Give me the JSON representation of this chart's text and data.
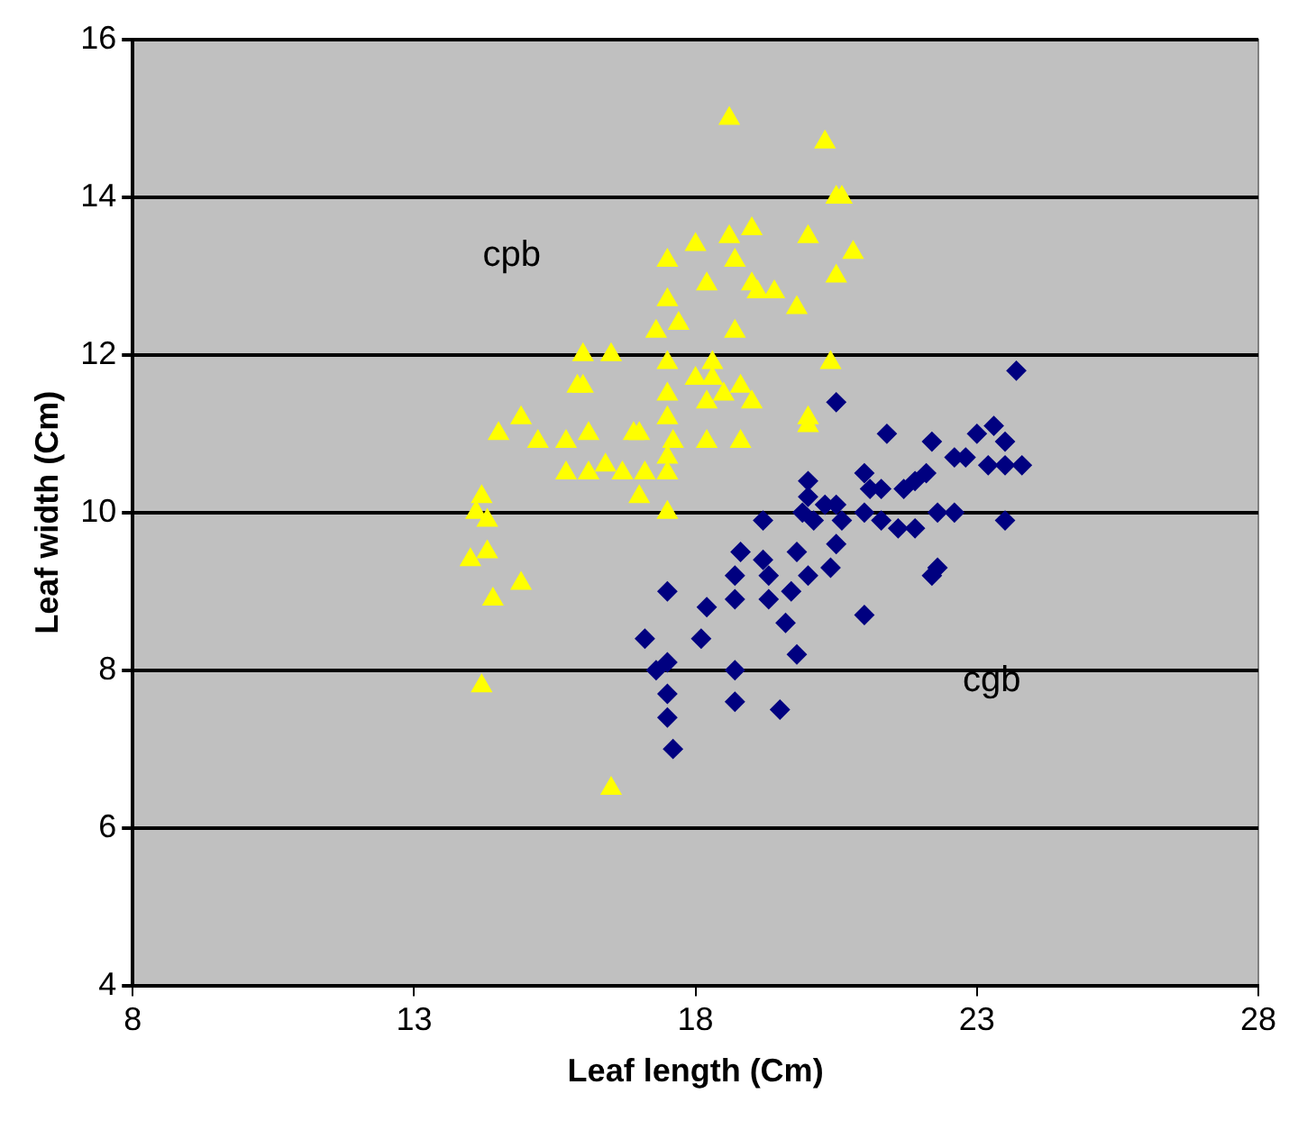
{
  "chart_data": {
    "type": "scatter",
    "xlabel": "Leaf length (Cm)",
    "ylabel": "Leaf width (Cm)",
    "xlim": [
      8,
      28
    ],
    "xticks": [
      8,
      13,
      18,
      23,
      28
    ],
    "ylim": [
      4,
      16
    ],
    "yticks": [
      4,
      6,
      8,
      10,
      12,
      14,
      16
    ],
    "grid": "y",
    "legend": false,
    "series": [
      {
        "name": "cpb",
        "color": "#ffff00",
        "marker": "triangle",
        "x": [
          18.6,
          20.3,
          20.6,
          20.5,
          18.0,
          18.6,
          19.0,
          20.0,
          20.8,
          17.5,
          18.2,
          18.7,
          19.0,
          19.1,
          19.4,
          19.8,
          20.5,
          17.5,
          17.7,
          17.3,
          18.7,
          19.0,
          20.4,
          16.0,
          16.5,
          17.5,
          18.3,
          18.0,
          18.3,
          18.8,
          18.5,
          17.5,
          15.9,
          16.0,
          14.9,
          17.5,
          18.2,
          20.0,
          20.0,
          15.2,
          14.5,
          15.7,
          16.9,
          17.0,
          17.6,
          18.2,
          18.8,
          16.1,
          17.5,
          17.5,
          15.7,
          16.1,
          16.4,
          16.7,
          17.1,
          17.0,
          17.5,
          14.2,
          14.1,
          14.3,
          14.0,
          14.3,
          14.9,
          14.4,
          14.2,
          16.5
        ],
        "values": [
          15.0,
          14.7,
          14.0,
          14.0,
          13.4,
          13.5,
          13.6,
          13.5,
          13.3,
          13.2,
          12.9,
          13.2,
          12.9,
          12.8,
          12.8,
          12.6,
          13.0,
          12.7,
          12.4,
          12.3,
          12.3,
          11.4,
          11.9,
          12.0,
          12.0,
          11.9,
          11.9,
          11.7,
          11.7,
          11.6,
          11.5,
          11.5,
          11.6,
          11.6,
          11.2,
          11.2,
          11.4,
          11.2,
          11.1,
          10.9,
          11.0,
          10.9,
          11.0,
          11.0,
          10.9,
          10.9,
          10.9,
          11.0,
          10.7,
          10.5,
          10.5,
          10.5,
          10.6,
          10.5,
          10.5,
          10.2,
          10.0,
          10.2,
          10.0,
          9.9,
          9.4,
          9.5,
          9.1,
          8.9,
          7.8,
          6.5
        ]
      },
      {
        "name": "cgb",
        "color": "#000080",
        "marker": "diamond",
        "x": [
          23.7,
          20.5,
          21.4,
          22.2,
          23.0,
          23.3,
          23.5,
          22.6,
          22.8,
          23.2,
          23.5,
          23.8,
          21.0,
          21.3,
          21.7,
          21.9,
          22.1,
          21.1,
          20.0,
          20.0,
          20.3,
          20.5,
          19.9,
          20.6,
          21.0,
          21.3,
          21.6,
          21.9,
          22.3,
          22.6,
          23.5,
          22.3,
          22.2,
          21.0,
          20.1,
          20.5,
          19.2,
          19.8,
          19.2,
          18.8,
          18.7,
          19.3,
          19.3,
          19.7,
          20.0,
          20.4,
          17.5,
          18.2,
          18.7,
          19.6,
          17.1,
          18.1,
          19.8,
          17.3,
          17.5,
          18.7,
          17.5,
          17.5,
          18.7,
          19.5,
          17.6
        ],
        "values": [
          11.8,
          11.4,
          11.0,
          10.9,
          11.0,
          11.1,
          10.9,
          10.7,
          10.7,
          10.6,
          10.6,
          10.6,
          10.5,
          10.3,
          10.3,
          10.4,
          10.5,
          10.3,
          10.4,
          10.2,
          10.1,
          10.1,
          10.0,
          9.9,
          10.0,
          9.9,
          9.8,
          9.8,
          10.0,
          10.0,
          9.9,
          9.3,
          9.2,
          8.7,
          9.9,
          9.6,
          9.9,
          9.5,
          9.4,
          9.5,
          9.2,
          9.2,
          8.9,
          9.0,
          9.2,
          9.3,
          9.0,
          8.8,
          8.9,
          8.6,
          8.4,
          8.4,
          8.2,
          8.0,
          8.1,
          8.0,
          7.7,
          7.4,
          7.6,
          7.5,
          7.0
        ]
      }
    ]
  }
}
